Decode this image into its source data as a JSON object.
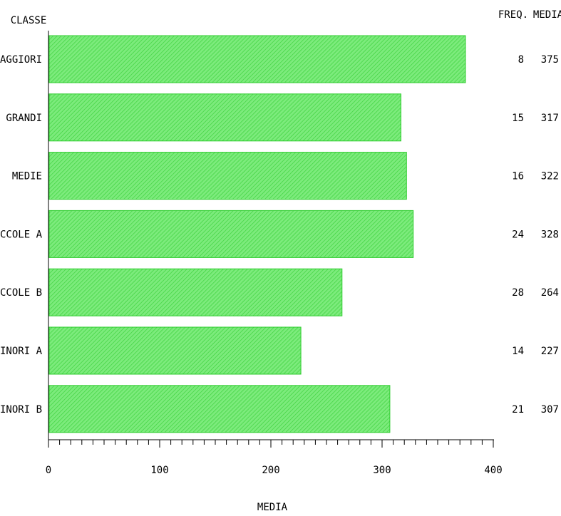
{
  "chart_data": {
    "type": "bar",
    "orientation": "horizontal",
    "category_header": "CLASSE",
    "categories": [
      "MAGGIORI",
      "GRANDI",
      "MEDIE",
      "PICCOLE A",
      "PICCOLE B",
      "MINORI A",
      "MINORI B"
    ],
    "values": [
      375,
      317,
      322,
      328,
      264,
      227,
      307
    ],
    "table_headers": [
      "FREQ.",
      "MEDIA"
    ],
    "freq": [
      "8",
      "15",
      "16",
      "24",
      "28",
      "14",
      "21"
    ],
    "media": [
      "375",
      "317",
      "322",
      "328",
      "264",
      "227",
      "307"
    ],
    "xlabel": "MEDIA",
    "xlim": [
      0,
      400
    ],
    "x_ticks": [
      "0",
      "100",
      "200",
      "300",
      "400"
    ],
    "x_minor_step": 10,
    "grid": false,
    "bar_color": "#7CEB7C",
    "bar_edge_color": "#2ECC2E",
    "bar_hatch_color": "#3FD23F"
  }
}
